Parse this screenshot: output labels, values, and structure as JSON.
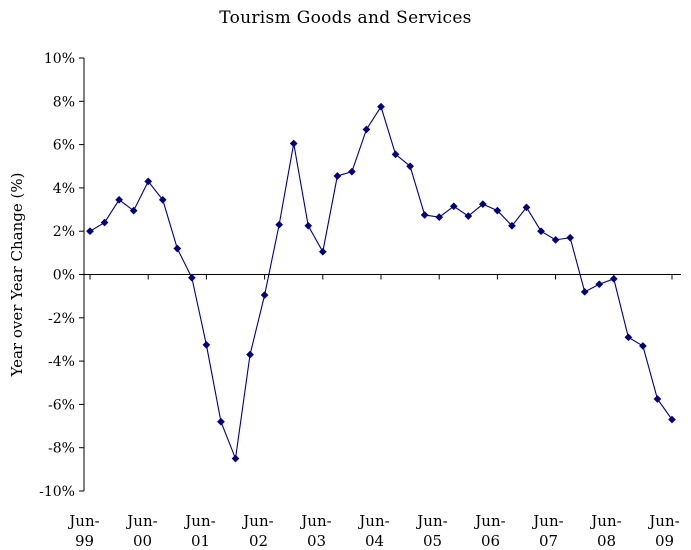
{
  "chart_data": {
    "type": "line",
    "title": "Tourism Goods and Services",
    "xlabel": "",
    "ylabel": "Year over Year Change (%)",
    "ylim": [
      -10,
      10
    ],
    "yticks": [
      -10,
      -8,
      -6,
      -4,
      -2,
      0,
      2,
      4,
      6,
      8,
      10
    ],
    "ytick_labels": [
      "-10%",
      "-8%",
      "-6%",
      "-4%",
      "-2%",
      "0%",
      "2%",
      "4%",
      "6%",
      "8%",
      "10%"
    ],
    "xtick_labels": [
      [
        "Jun-",
        "99"
      ],
      [
        "Jun-",
        "00"
      ],
      [
        "Jun-",
        "01"
      ],
      [
        "Jun-",
        "02"
      ],
      [
        "Jun-",
        "03"
      ],
      [
        "Jun-",
        "04"
      ],
      [
        "Jun-",
        "05"
      ],
      [
        "Jun-",
        "06"
      ],
      [
        "Jun-",
        "07"
      ],
      [
        "Jun-",
        "08"
      ],
      [
        "Jun-",
        "09"
      ]
    ],
    "grid": false,
    "series_color": "#000080",
    "series": [
      {
        "values": [
          2.0,
          2.4,
          3.45,
          2.95,
          4.3,
          3.45,
          1.2,
          -0.15,
          -3.25,
          -6.8,
          -8.5,
          -3.7,
          -0.95,
          2.3,
          6.05,
          2.25,
          1.05,
          4.55,
          4.75,
          6.7,
          7.75,
          5.55,
          5.0,
          2.75,
          2.65,
          3.15,
          2.7,
          3.25,
          2.95,
          2.25,
          3.1,
          2.0,
          1.6,
          1.7,
          -0.8,
          -0.45,
          -0.2,
          -2.9,
          -3.3,
          -5.75,
          -6.7
        ]
      }
    ]
  }
}
